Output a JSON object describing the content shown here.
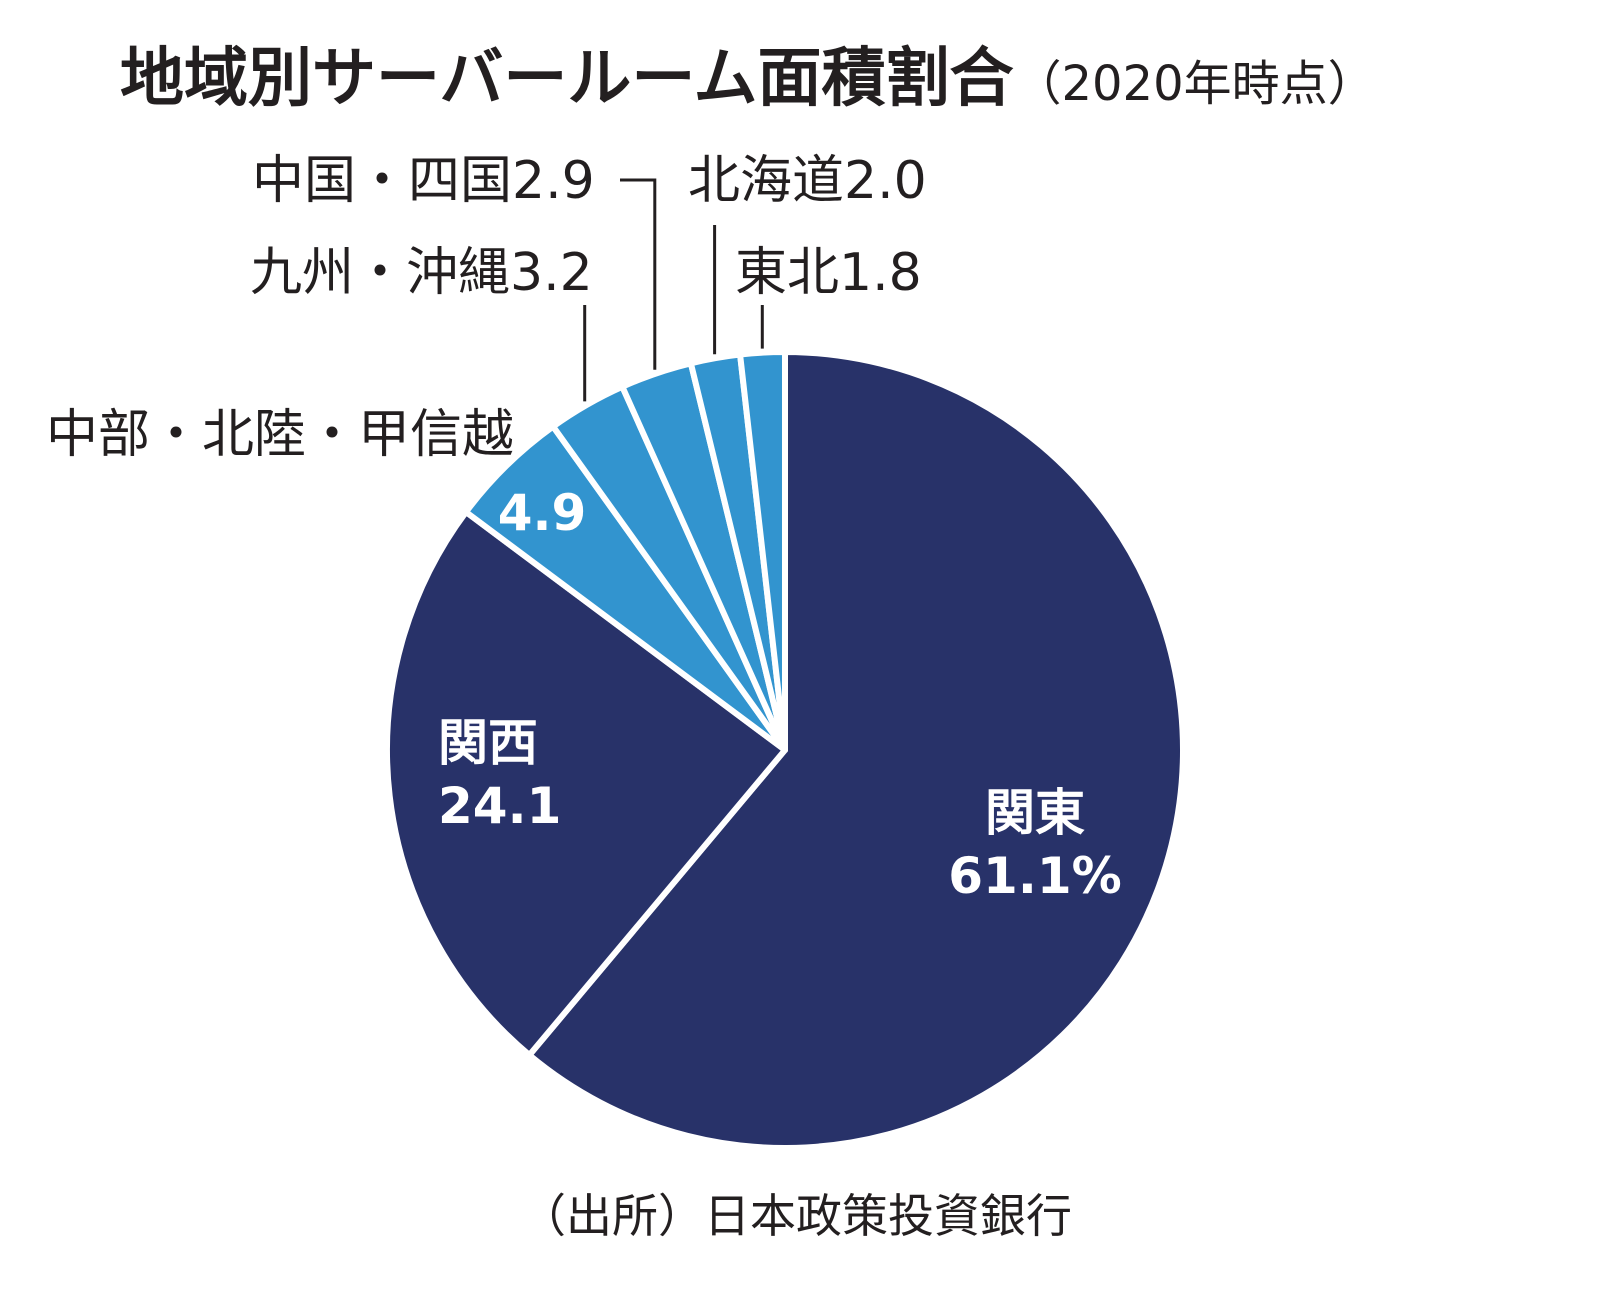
{
  "chart_data": {
    "type": "pie",
    "title": "地域別サーバールーム面積割合",
    "subtitle": "（2020年時点）",
    "source": "（出所）日本政策投資銀行",
    "slices": [
      {
        "label": "関東",
        "value": 61.1,
        "display": "61.1%",
        "color": "#283269"
      },
      {
        "label": "関西",
        "value": 24.1,
        "display": "24.1",
        "color": "#283269"
      },
      {
        "label": "中部・北陸・甲信越",
        "value": 4.9,
        "display": "4.9",
        "color": "#3294cf"
      },
      {
        "label": "九州・沖縄",
        "value": 3.2,
        "display": "3.2",
        "color": "#3294cf"
      },
      {
        "label": "中国・四国",
        "value": 2.9,
        "display": "2.9",
        "color": "#3294cf"
      },
      {
        "label": "北海道",
        "value": 2.0,
        "display": "2.0",
        "color": "#3294cf"
      },
      {
        "label": "東北",
        "value": 1.8,
        "display": "1.8",
        "color": "#3294cf"
      }
    ],
    "direction": "clockwise",
    "start": "top"
  }
}
